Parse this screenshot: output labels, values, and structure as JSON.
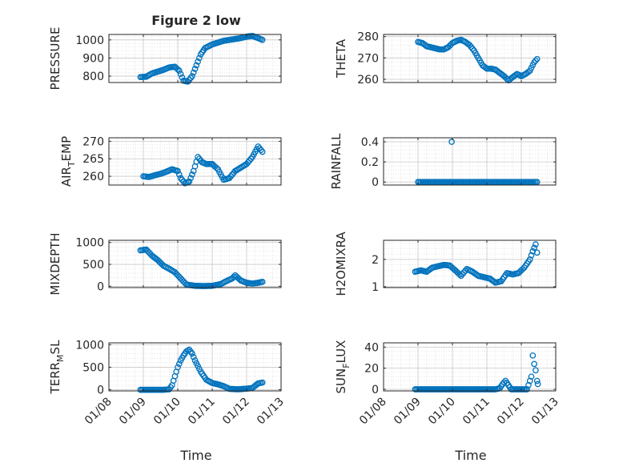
{
  "figure": {
    "title": "Figure 2 low",
    "xlabel": "Time",
    "marker_color": "#0072BD",
    "x_tick_labels": [
      "01/08",
      "01/09",
      "01/10",
      "01/11",
      "01/12",
      "01/13"
    ]
  },
  "chart_data": [
    {
      "type": "scatter",
      "name": "pressure",
      "ylabel": "PRESSURE",
      "ylim": [
        765,
        1030
      ],
      "yticks": [
        800,
        900,
        1000
      ],
      "grid": true,
      "title": "Figure 2 low",
      "x": [
        "01/08 22:00",
        "01/09 02:00",
        "01/09 06:00",
        "01/09 10:00",
        "01/09 14:00",
        "01/09 18:00",
        "01/09 22:00",
        "01/10 01:00",
        "01/10 04:00",
        "01/10 07:00",
        "01/10 10:00",
        "01/10 13:00",
        "01/10 16:00",
        "01/10 19:00",
        "01/11 00:00",
        "01/11 04:00",
        "01/11 08:00",
        "01/11 12:00",
        "01/11 16:00",
        "01/11 20:00",
        "01/12 00:00",
        "01/12 04:00",
        "01/12 08:00",
        "01/12 11:00"
      ],
      "y": [
        795,
        797,
        815,
        825,
        835,
        848,
        852,
        830,
        775,
        770,
        800,
        860,
        920,
        955,
        975,
        985,
        995,
        1000,
        1005,
        1010,
        1018,
        1022,
        1010,
        1000
      ]
    },
    {
      "type": "scatter",
      "name": "theta",
      "ylabel": "THETA",
      "ylim": [
        258.5,
        281
      ],
      "yticks": [
        260,
        270,
        280
      ],
      "grid": true,
      "x": [
        "01/09 00:00",
        "01/09 03:00",
        "01/09 06:00",
        "01/09 09:00",
        "01/09 12:00",
        "01/09 15:00",
        "01/09 18:00",
        "01/09 21:00",
        "01/10 00:00",
        "01/10 03:00",
        "01/10 06:00",
        "01/10 09:00",
        "01/10 12:00",
        "01/10 15:00",
        "01/10 18:00",
        "01/10 21:00",
        "01/11 00:00",
        "01/11 03:00",
        "01/11 06:00",
        "01/11 09:00",
        "01/11 12:00",
        "01/11 15:00",
        "01/11 18:00",
        "01/11 21:00",
        "01/12 00:00",
        "01/12 03:00",
        "01/12 06:00",
        "01/12 09:00",
        "01/12 11:00"
      ],
      "y": [
        277.5,
        277,
        275.5,
        275,
        274.5,
        274,
        274,
        275,
        277,
        278,
        278.5,
        277.5,
        276,
        273.5,
        270,
        266.5,
        265,
        265,
        264.5,
        263,
        261.5,
        259.5,
        261,
        262.5,
        261.5,
        262.5,
        264,
        268,
        269.5
      ]
    },
    {
      "type": "scatter",
      "name": "air_temp",
      "ylabel": "AIR_TEMP",
      "ylim": [
        257.5,
        271
      ],
      "yticks": [
        260,
        265,
        270
      ],
      "grid": true,
      "x": [
        "01/09 00:00",
        "01/09 04:00",
        "01/09 08:00",
        "01/09 12:00",
        "01/09 16:00",
        "01/09 20:00",
        "01/10 00:00",
        "01/10 02:00",
        "01/10 05:00",
        "01/10 08:00",
        "01/10 11:00",
        "01/10 14:00",
        "01/10 17:00",
        "01/10 20:00",
        "01/11 00:00",
        "01/11 04:00",
        "01/11 08:00",
        "01/11 12:00",
        "01/11 16:00",
        "01/11 20:00",
        "01/12 00:00",
        "01/12 04:00",
        "01/12 08:00",
        "01/12 11:00"
      ],
      "y": [
        260,
        259.8,
        260.3,
        260.7,
        261.3,
        262,
        261.5,
        259.5,
        258,
        258.5,
        261.5,
        265.5,
        264,
        263.5,
        263.5,
        262,
        259,
        259.5,
        261.5,
        262.5,
        263.5,
        265.5,
        268.5,
        267
      ]
    },
    {
      "type": "scatter",
      "name": "rainfall",
      "ylabel": "RAINFALL",
      "ylim": [
        -0.03,
        0.44
      ],
      "yticks": [
        0,
        0.2,
        0.4
      ],
      "grid": true,
      "x": [
        "01/09 00:00",
        "01/09 12:00",
        "01/09 23:00",
        "01/10 12:00",
        "01/11 00:00",
        "01/11 12:00",
        "01/12 00:00",
        "01/12 11:00",
        "01/09 23:30"
      ],
      "y": [
        0,
        0,
        0,
        0,
        0,
        0,
        0,
        0,
        0.4
      ]
    },
    {
      "type": "scatter",
      "name": "mixdepth",
      "ylabel": "MIXDEPTH",
      "ylim": [
        -30,
        1050
      ],
      "yticks": [
        0,
        500,
        1000
      ],
      "grid": true,
      "x": [
        "01/08 22:00",
        "01/09 02:00",
        "01/09 06:00",
        "01/09 10:00",
        "01/09 14:00",
        "01/09 18:00",
        "01/09 22:00",
        "01/10 02:00",
        "01/10 06:00",
        "01/10 12:00",
        "01/10 18:00",
        "01/11 00:00",
        "01/11 06:00",
        "01/11 10:00",
        "01/11 14:00",
        "01/11 16:00",
        "01/11 20:00",
        "01/12 00:00",
        "01/12 04:00",
        "01/12 08:00",
        "01/12 11:00"
      ],
      "y": [
        820,
        840,
        700,
        600,
        470,
        400,
        320,
        180,
        40,
        10,
        5,
        10,
        50,
        120,
        180,
        250,
        130,
        80,
        60,
        80,
        100
      ]
    },
    {
      "type": "scatter",
      "name": "h2omixra",
      "ylabel": "H2OMIXRA",
      "ylim": [
        0.97,
        2.7
      ],
      "yticks": [
        1,
        2
      ],
      "grid": true,
      "x": [
        "01/08 22:00",
        "01/09 02:00",
        "01/09 06:00",
        "01/09 10:00",
        "01/09 14:00",
        "01/09 18:00",
        "01/09 22:00",
        "01/10 02:00",
        "01/10 06:00",
        "01/10 10:00",
        "01/10 14:00",
        "01/10 18:00",
        "01/10 22:00",
        "01/11 02:00",
        "01/11 06:00",
        "01/11 10:00",
        "01/11 14:00",
        "01/11 18:00",
        "01/11 22:00",
        "01/12 02:00",
        "01/12 06:00",
        "01/12 08:00",
        "01/12 10:00",
        "01/12 11:00"
      ],
      "y": [
        1.55,
        1.6,
        1.55,
        1.7,
        1.75,
        1.8,
        1.78,
        1.6,
        1.4,
        1.65,
        1.55,
        1.4,
        1.35,
        1.3,
        1.15,
        1.2,
        1.5,
        1.45,
        1.5,
        1.7,
        2.0,
        2.3,
        2.55,
        2.25
      ]
    },
    {
      "type": "scatter",
      "name": "terr_msl",
      "ylabel": "TERR_MSL",
      "ylim": [
        -25,
        1040
      ],
      "yticks": [
        0,
        500,
        1000
      ],
      "grid": true,
      "x": [
        "01/08 22:00",
        "01/09 06:00",
        "01/09 14:00",
        "01/09 18:00",
        "01/09 20:00",
        "01/09 22:00",
        "01/10 00:00",
        "01/10 02:00",
        "01/10 04:00",
        "01/10 06:00",
        "01/10 08:00",
        "01/10 10:00",
        "01/10 12:00",
        "01/10 16:00",
        "01/10 20:00",
        "01/11 00:00",
        "01/11 04:00",
        "01/11 08:00",
        "01/11 12:00",
        "01/11 18:00",
        "01/12 00:00",
        "01/12 04:00",
        "01/12 08:00",
        "01/12 11:00"
      ],
      "y": [
        0,
        0,
        0,
        10,
        100,
        300,
        500,
        650,
        760,
        850,
        890,
        800,
        650,
        400,
        220,
        150,
        120,
        80,
        20,
        10,
        25,
        40,
        140,
        160
      ]
    },
    {
      "type": "scatter",
      "name": "sun_flux",
      "ylabel": "SUN_FLUX",
      "ylim": [
        -1.5,
        44
      ],
      "yticks": [
        0,
        20,
        40
      ],
      "grid": true,
      "x": [
        "01/08 22:00",
        "01/09 06:00",
        "01/09 14:00",
        "01/09 22:00",
        "01/10 06:00",
        "01/10 14:00",
        "01/10 22:00",
        "01/11 06:00",
        "01/11 09:00",
        "01/11 11:00",
        "01/11 13:00",
        "01/11 15:00",
        "01/11 17:00",
        "01/11 22:00",
        "01/12 04:00",
        "01/12 07:00",
        "01/12 08:00",
        "01/12 09:00",
        "01/12 10:00",
        "01/12 11:00",
        "01/12 11:30"
      ],
      "y": [
        0,
        0,
        0,
        0,
        0,
        0,
        0,
        0,
        1,
        5,
        8,
        4,
        0,
        0,
        0,
        12,
        32,
        24,
        18,
        8,
        5
      ]
    }
  ]
}
